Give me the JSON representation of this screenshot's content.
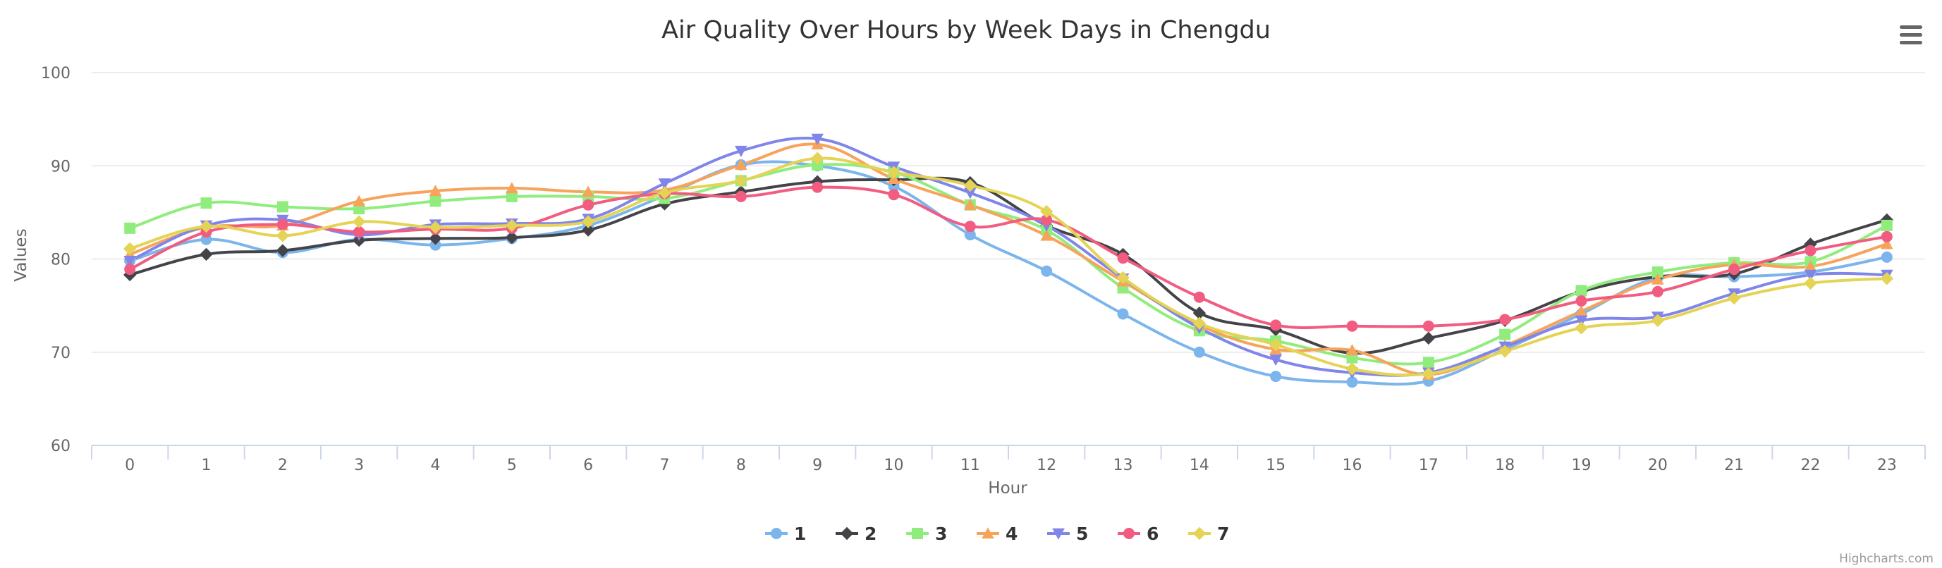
{
  "chart_data": {
    "type": "line",
    "title": "Air Quality Over Hours by Week Days in Chengdu",
    "xlabel": "Hour",
    "ylabel": "Values",
    "ylim": [
      60,
      100
    ],
    "yticks": [
      "60",
      "70",
      "80",
      "90",
      "100"
    ],
    "categories": [
      "0",
      "1",
      "2",
      "3",
      "4",
      "5",
      "6",
      "7",
      "8",
      "9",
      "10",
      "11",
      "12",
      "13",
      "14",
      "15",
      "16",
      "17",
      "18",
      "19",
      "20",
      "21",
      "22",
      "23"
    ],
    "grid": true,
    "legend_position": "bottom-center",
    "series": [
      {
        "name": "1",
        "color": "#7cb5ec",
        "marker": "circle",
        "values": [
          79.8,
          82.1,
          80.7,
          82.1,
          81.5,
          82.2,
          83.6,
          86.8,
          90.1,
          90.0,
          87.8,
          82.6,
          78.7,
          74.1,
          70.0,
          67.4,
          66.8,
          66.9,
          70.3,
          74.1,
          78.0,
          78.1,
          78.6,
          80.2
        ]
      },
      {
        "name": "2",
        "color": "#434348",
        "marker": "diamond",
        "values": [
          78.3,
          80.5,
          80.9,
          82.0,
          82.2,
          82.3,
          83.1,
          85.9,
          87.2,
          88.3,
          88.5,
          88.2,
          83.6,
          80.5,
          74.2,
          72.4,
          69.9,
          71.5,
          73.4,
          76.5,
          78.1,
          78.4,
          81.6,
          84.2
        ]
      },
      {
        "name": "3",
        "color": "#90ed7d",
        "marker": "square",
        "values": [
          83.3,
          86.0,
          85.6,
          85.4,
          86.2,
          86.7,
          86.7,
          86.5,
          88.4,
          90.1,
          89.3,
          85.8,
          83.1,
          76.9,
          72.3,
          71.2,
          69.4,
          68.9,
          71.9,
          76.6,
          78.6,
          79.6,
          79.7,
          83.6
        ]
      },
      {
        "name": "4",
        "color": "#f7a35c",
        "marker": "triangle",
        "values": [
          80.5,
          83.4,
          83.6,
          86.2,
          87.3,
          87.6,
          87.2,
          87.4,
          90.1,
          92.3,
          88.6,
          85.8,
          82.5,
          77.6,
          72.9,
          70.3,
          70.2,
          67.6,
          70.7,
          74.4,
          77.8,
          79.4,
          79.2,
          81.6
        ]
      },
      {
        "name": "5",
        "color": "#8085e9",
        "marker": "triangle-down",
        "values": [
          79.8,
          83.6,
          84.2,
          82.6,
          83.7,
          83.8,
          84.3,
          88.1,
          91.6,
          92.9,
          89.9,
          87.1,
          83.6,
          77.9,
          72.6,
          69.2,
          67.8,
          67.8,
          70.6,
          73.4,
          73.8,
          76.3,
          78.3,
          78.3
        ]
      },
      {
        "name": "6",
        "color": "#f15c80",
        "marker": "circle",
        "values": [
          78.9,
          82.9,
          83.7,
          82.9,
          83.2,
          83.3,
          85.8,
          87.0,
          86.7,
          87.7,
          86.9,
          83.5,
          84.2,
          80.1,
          75.9,
          72.9,
          72.8,
          72.8,
          73.5,
          75.5,
          76.5,
          78.9,
          80.9,
          82.4
        ]
      },
      {
        "name": "7",
        "color": "#e4d354",
        "marker": "diamond",
        "values": [
          81.1,
          83.5,
          82.5,
          84.0,
          83.4,
          83.6,
          84.0,
          87.1,
          88.4,
          90.8,
          89.3,
          87.9,
          85.1,
          78.0,
          73.1,
          70.8,
          68.2,
          67.7,
          70.1,
          72.6,
          73.4,
          75.8,
          77.4,
          77.9
        ]
      }
    ]
  },
  "credit": "Highcharts.com",
  "menu_icon": "hamburger-menu-icon"
}
